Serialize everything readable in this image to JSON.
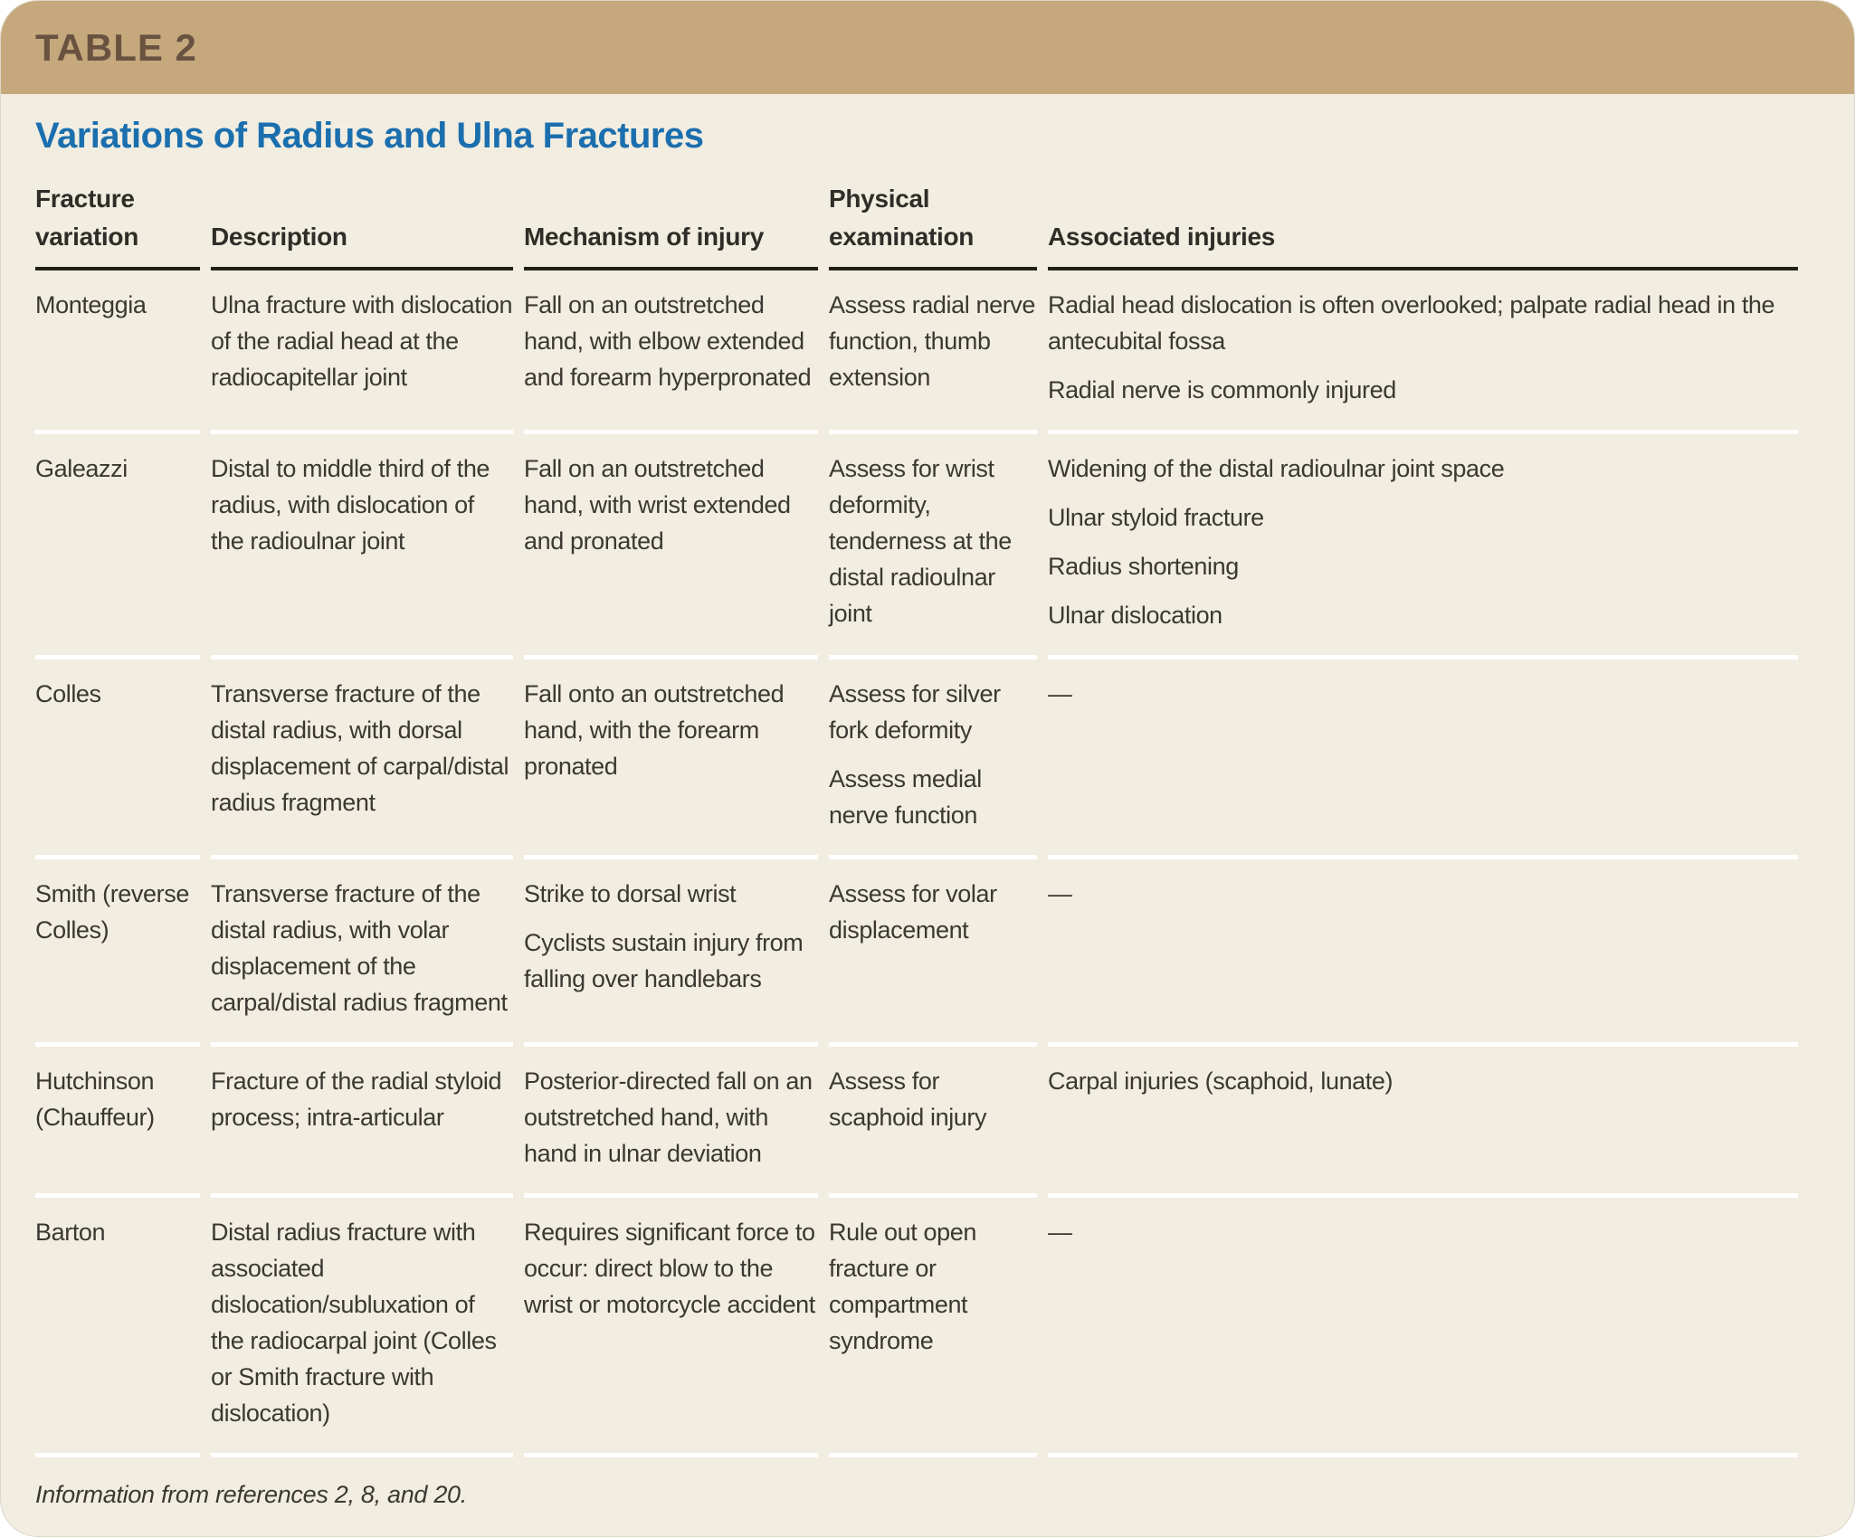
{
  "table_label": "TABLE 2",
  "title": "Variations of Radius and Ulna Fractures",
  "columns": [
    "Fracture variation",
    "Description",
    "Mechanism of injury",
    "Physical examination",
    "Associated injuries"
  ],
  "rows": [
    {
      "variation": "Monteggia",
      "description": [
        "Ulna fracture with dislocation of the radial head at the radiocapitellar joint"
      ],
      "mechanism": [
        "Fall on an outstretched hand, with elbow extended and forearm hyperpronated"
      ],
      "physical_exam": [
        "Assess radial nerve function, thumb extension"
      ],
      "associated_injuries": [
        "Radial head dislocation is often overlooked; palpate radial head in the antecubital fossa",
        "Radial nerve is commonly injured"
      ]
    },
    {
      "variation": "Galeazzi",
      "description": [
        "Distal to middle third of the radius, with dislocation of the radioulnar joint"
      ],
      "mechanism": [
        "Fall on an outstretched hand, with wrist extended and pronated"
      ],
      "physical_exam": [
        "Assess for wrist deformity, tenderness at the distal radioulnar joint"
      ],
      "associated_injuries": [
        "Widening of the distal radioulnar joint space",
        "Ulnar styloid fracture",
        "Radius shortening",
        "Ulnar dislocation"
      ]
    },
    {
      "variation": "Colles",
      "description": [
        "Transverse fracture of the distal radius, with dorsal displacement of carpal/distal radius fragment"
      ],
      "mechanism": [
        "Fall onto an outstretched hand, with the forearm pronated"
      ],
      "physical_exam": [
        "Assess for silver fork deformity",
        "Assess medial nerve function"
      ],
      "associated_injuries": [
        "—"
      ]
    },
    {
      "variation": "Smith (reverse Colles)",
      "description": [
        "Transverse fracture of the distal radius, with volar displacement of the carpal/distal radius fragment"
      ],
      "mechanism": [
        "Strike to dorsal wrist",
        "Cyclists sustain injury from falling over handlebars"
      ],
      "physical_exam": [
        "Assess for volar displacement"
      ],
      "associated_injuries": [
        "—"
      ]
    },
    {
      "variation": "Hutchinson (Chauffeur)",
      "description": [
        "Fracture of the radial styloid process; intra-articular"
      ],
      "mechanism": [
        "Posterior-directed fall on an outstretched hand, with hand in ulnar deviation"
      ],
      "physical_exam": [
        "Assess for scaphoid injury"
      ],
      "associated_injuries": [
        "Carpal injuries (scaphoid, lunate)"
      ]
    },
    {
      "variation": "Barton",
      "description": [
        "Distal radius fracture with associated dislocation/subluxation of the radiocarpal joint (Colles or Smith fracture with dislocation)"
      ],
      "mechanism": [
        "Requires significant force to occur: direct blow to the wrist or motorcycle accident"
      ],
      "physical_exam": [
        "Rule out open fracture or compartment syndrome"
      ],
      "associated_injuries": [
        "—"
      ]
    }
  ],
  "footnote": "Information from references 2, 8, and 20.",
  "colors": {
    "header_bar": "#C5A97D",
    "header_bar_text": "#6A5241",
    "body_background": "#F2EDE1",
    "title_blue": "#1B6FAE",
    "body_text": "#3A3831",
    "header_rule": "#222019",
    "row_separator": "#FFFFFF"
  }
}
